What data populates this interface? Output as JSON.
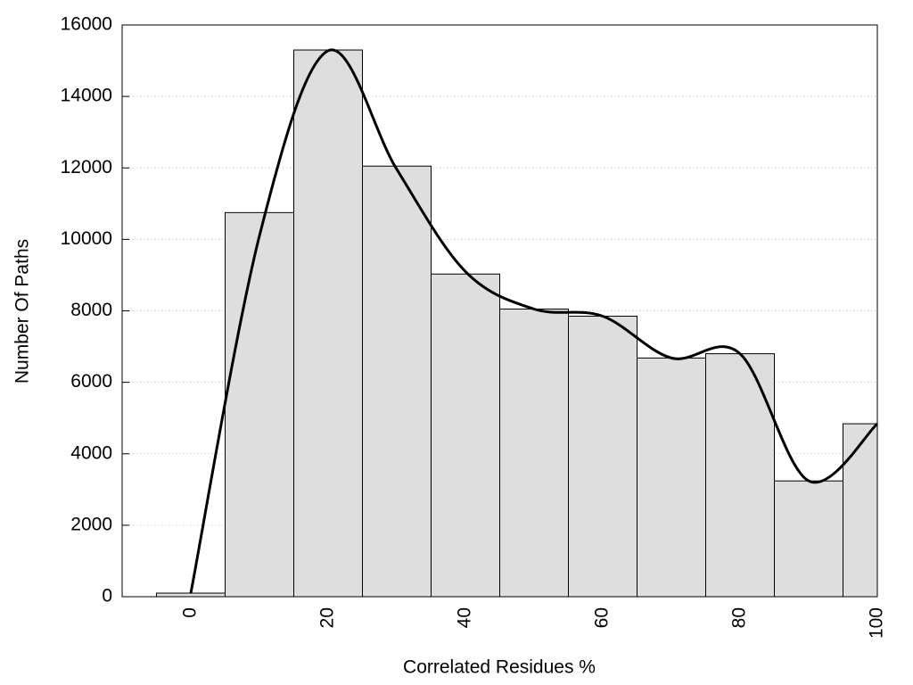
{
  "chart_data": {
    "type": "histogram",
    "xlabel": "Correlated Residues %",
    "ylabel": "Number Of Paths",
    "bins": [
      -5,
      5,
      15,
      25,
      35,
      45,
      55,
      65,
      75,
      85,
      95,
      100
    ],
    "values": [
      100,
      10750,
      15300,
      12050,
      9030,
      8050,
      7850,
      6680,
      6800,
      3240,
      4840
    ],
    "color": "#dedede",
    "overlay": {
      "type": "line",
      "color": "#000000",
      "x": [
        0,
        10,
        20,
        30,
        40,
        50,
        60,
        70,
        80,
        90,
        100
      ],
      "values": [
        100,
        10100,
        15280,
        11960,
        9100,
        8050,
        7850,
        6680,
        6800,
        3240,
        4840
      ]
    },
    "xlim": [
      -10,
      100
    ],
    "ylim": [
      0,
      16000
    ],
    "xticks": [
      0,
      20,
      40,
      60,
      80,
      100
    ],
    "yticks": [
      0,
      2000,
      4000,
      6000,
      8000,
      10000,
      12000,
      14000,
      16000
    ],
    "grid": true
  }
}
